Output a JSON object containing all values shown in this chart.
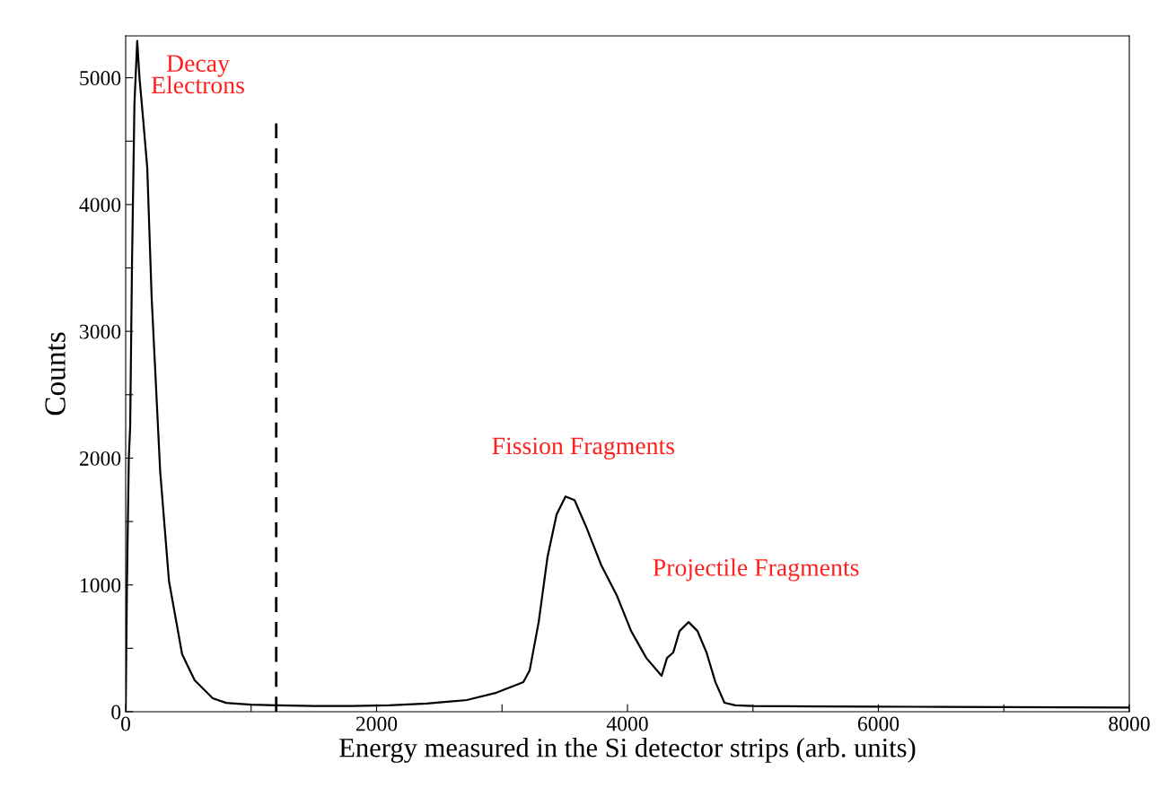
{
  "chart_data": {
    "type": "line",
    "xlabel": "Energy measured in the Si detector strips (arb. units)",
    "ylabel": "Counts",
    "x": [
      0,
      10,
      25,
      36,
      50,
      70,
      92,
      110,
      136,
      172,
      207,
      275,
      345,
      450,
      550,
      694,
      800,
      1000,
      1200,
      1500,
      1800,
      2100,
      2400,
      2719,
      2955,
      3170,
      3220,
      3292,
      3363,
      3435,
      3506,
      3578,
      3671,
      3792,
      3914,
      4029,
      4150,
      4272,
      4315,
      4365,
      4415,
      4487,
      4558,
      4630,
      4701,
      4773,
      4860,
      5000,
      5500,
      6000,
      6500,
      7000,
      7500,
      8000
    ],
    "series": [
      {
        "color": "#000000",
        "values": [
          0,
          1000,
          2000,
          2250,
          3500,
          4800,
          5290,
          5000,
          4710,
          4290,
          3267,
          1895,
          1032,
          453,
          248,
          106,
          70,
          55,
          50,
          45,
          45,
          50,
          65,
          92,
          150,
          233,
          325,
          707,
          1223,
          1556,
          1697,
          1669,
          1457,
          1153,
          919,
          636,
          424,
          283,
          424,
          467,
          636,
          707,
          636,
          467,
          233,
          71,
          50,
          45,
          42,
          40,
          38,
          36,
          34,
          32
        ]
      }
    ],
    "xlim": [
      0,
      8000
    ],
    "ylim": [
      0,
      5330
    ],
    "xticks": [
      0,
      {
        "value": 1000,
        "label": null
      },
      2000,
      {
        "value": 3000,
        "label": null
      },
      4000,
      {
        "value": 5000,
        "label": null
      },
      6000,
      {
        "value": 7000,
        "label": null
      },
      8000
    ],
    "yticks": [
      0,
      {
        "value": 500,
        "label": null
      },
      1000,
      {
        "value": 1500,
        "label": null
      },
      2000,
      {
        "value": 2500,
        "label": null
      },
      3000,
      {
        "value": 3500,
        "label": null
      },
      4000,
      {
        "value": 4500,
        "label": null
      },
      5000
    ],
    "ref_lines": [
      {
        "axis": "x",
        "value": 1200,
        "color": "#000000",
        "line_style": "dashed"
      }
    ],
    "annotations": [
      "Decay\nElectrons",
      "Fission Fragments",
      "Projectile Fragments"
    ],
    "grid": false,
    "marker": "none",
    "line_style": "solid"
  }
}
